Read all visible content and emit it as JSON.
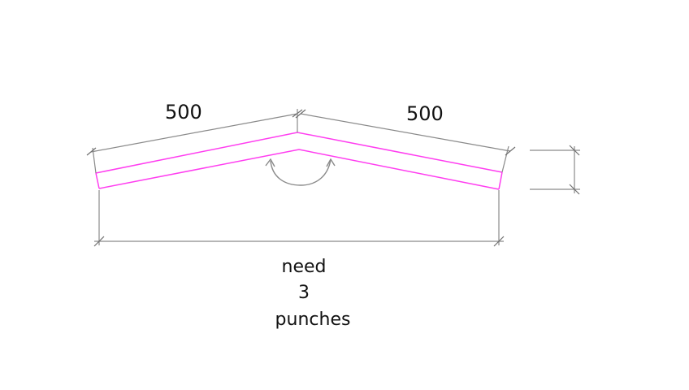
{
  "dimensions": {
    "left_length": "500",
    "right_length": "500"
  },
  "note": {
    "line1": "need",
    "line2": "3",
    "line3": "punches"
  },
  "colors": {
    "part_outline": "#ff3df0",
    "dimension_lines": "#8a8a8a",
    "text": "#111111"
  }
}
